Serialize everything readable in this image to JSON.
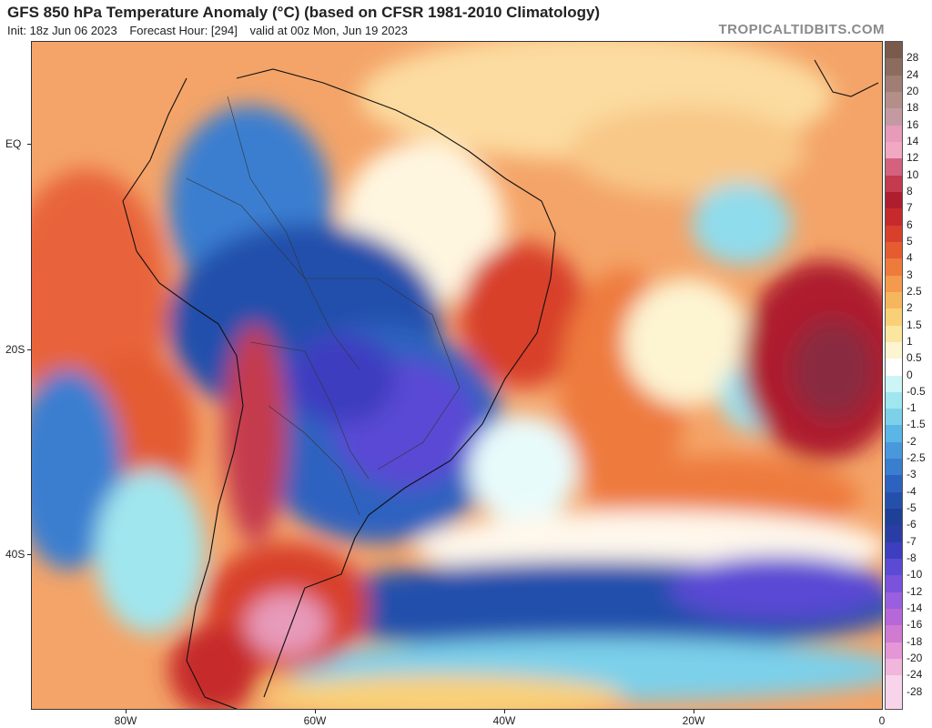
{
  "header": {
    "title": "GFS 850 hPa Temperature Anomaly (°C) (based on CFSR 1981-2010 Climatology)",
    "init": "Init: 18z Jun 06 2023",
    "forecast_hour": "Forecast Hour: [294]",
    "valid": "valid at 00z Mon, Jun 19 2023",
    "brand": "TROPICALTIDBITS.COM"
  },
  "axes": {
    "lat_labels": [
      "EQ",
      "20S",
      "40S"
    ],
    "lon_labels": [
      "80W",
      "60W",
      "40W",
      "20W",
      "0"
    ]
  },
  "colorbar": {
    "levels": [
      "28",
      "24",
      "20",
      "18",
      "16",
      "14",
      "12",
      "10",
      "8",
      "7",
      "6",
      "5",
      "4",
      "3",
      "2.5",
      "2",
      "1.5",
      "1",
      "0.5",
      "0",
      "-0.5",
      "-1",
      "-1.5",
      "-2",
      "-2.5",
      "-3",
      "-4",
      "-5",
      "-6",
      "-7",
      "-8",
      "-10",
      "-12",
      "-14",
      "-16",
      "-18",
      "-20",
      "-24",
      "-28"
    ],
    "colors": [
      "#7a5a4a",
      "#8c6c5e",
      "#a07e74",
      "#b48f8a",
      "#c49aa2",
      "#e79ab9",
      "#f0a8c3",
      "#d4627e",
      "#c43a4e",
      "#ae1e2e",
      "#c62a2c",
      "#d8402c",
      "#e45c30",
      "#ee7a3c",
      "#f39a4c",
      "#f6b65e",
      "#f9d078",
      "#fbe6a0",
      "#fdf4d2",
      "#ffffff",
      "#cdf4f6",
      "#a0e6ee",
      "#7cd0ea",
      "#5ab6e4",
      "#4a98dc",
      "#3a7ed0",
      "#2d62c0",
      "#2450ac",
      "#1e4096",
      "#2a3da4",
      "#3d3ec0",
      "#5a4ad4",
      "#7a52dc",
      "#9a5ee0",
      "#b668d8",
      "#d07ad2",
      "#e496d6",
      "#f0b6dc",
      "#f8d4ea"
    ]
  }
}
